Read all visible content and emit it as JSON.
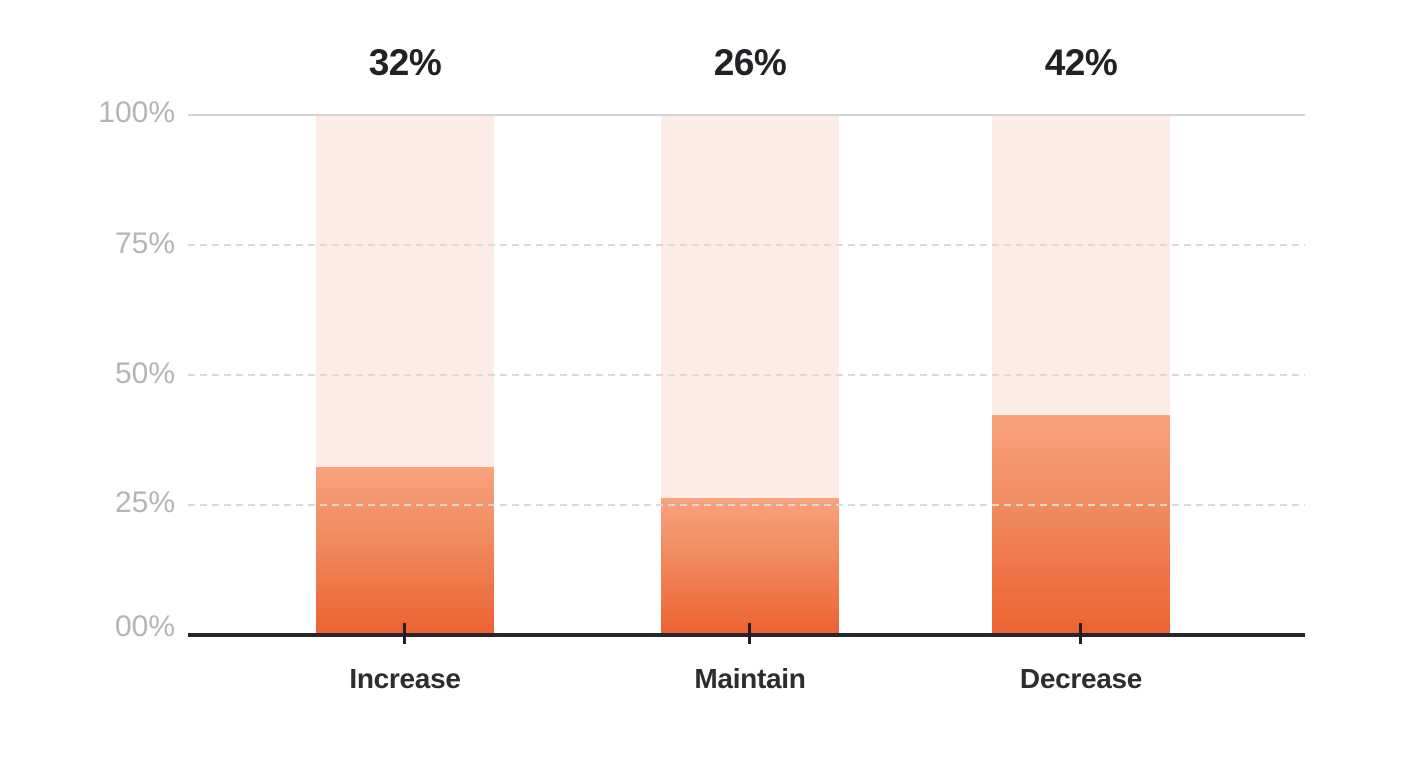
{
  "chart_data": {
    "type": "bar",
    "title": "",
    "xlabel": "",
    "ylabel": "",
    "categories": [
      "Increase",
      "Maintain",
      "Decrease"
    ],
    "values": [
      32,
      26,
      42
    ],
    "value_labels": [
      "32%",
      "26%",
      "42%"
    ],
    "ylim": [
      0,
      100
    ],
    "y_tick_labels": [
      "100%",
      "75%",
      "50%",
      "25%",
      "00%"
    ],
    "grid": "horizontal; dashed at 25%, 50%, 75%; solid at 100%",
    "legend": "none",
    "colors": {
      "background": "#ffffff",
      "bar_fill_gradient_top": "#f9a27e",
      "bar_fill_gradient_bottom": "#ed6232",
      "bar_track_background": "#fdece5",
      "gridline": "#d9d9da",
      "axis_line": "#26262b",
      "y_tick_label": "#b5b5b7",
      "category_label": "#2d2d30",
      "value_label": "#222226"
    }
  }
}
